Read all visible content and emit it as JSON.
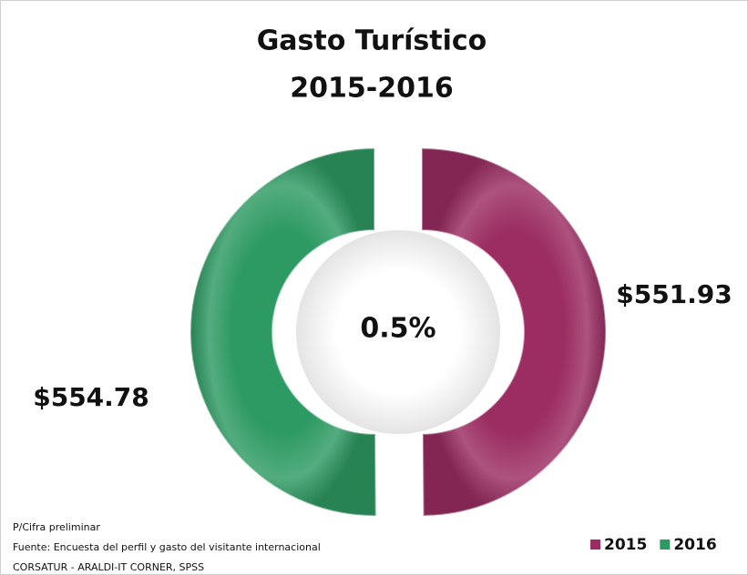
{
  "chart_data": {
    "type": "donut",
    "title": "Gasto Turístico",
    "subtitle": "2015-2016",
    "center_label": "0.5%",
    "categories": [
      "2015",
      "2016"
    ],
    "values": [
      551.93,
      554.78
    ],
    "value_labels": [
      "$551.93",
      "$554.78"
    ],
    "colors": [
      "#9b2d62",
      "#2e9a63"
    ],
    "legend": "bottom-right",
    "notes": [
      "P/Cifra preliminar",
      "Fuente: Encuesta del perfil y gasto del visitante internacional",
      "CORSATUR - ARALDI-IT CORNER, SPSS"
    ]
  }
}
